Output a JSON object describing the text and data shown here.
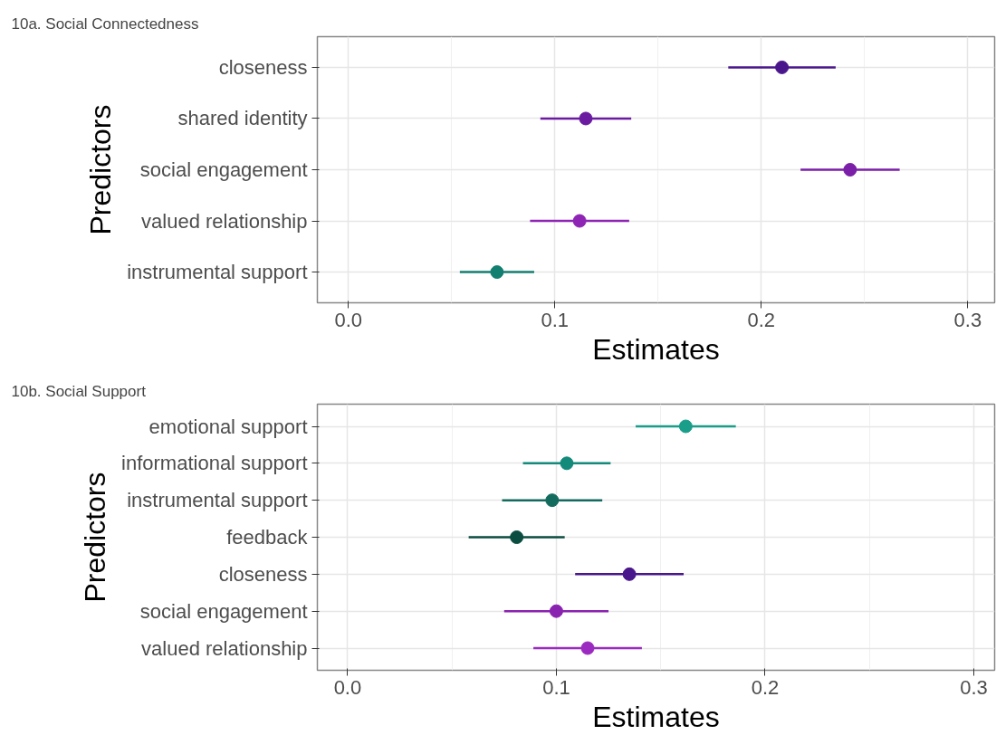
{
  "chart_data": [
    {
      "type": "scatter",
      "orientation": "horizontal",
      "title": "10a. Social Connectedness",
      "xlabel": "Estimates",
      "ylabel": "Predictors",
      "categories": [
        "closeness",
        "shared identity",
        "social engagement",
        "valued relationship",
        "instrumental support"
      ],
      "values": [
        0.21,
        0.115,
        0.243,
        0.112,
        0.072
      ],
      "errors": [
        [
          0.184,
          0.236
        ],
        [
          0.093,
          0.137
        ],
        [
          0.219,
          0.267
        ],
        [
          0.088,
          0.136
        ],
        [
          0.054,
          0.09
        ]
      ],
      "colors": [
        "#4a168c",
        "#6a1ba0",
        "#7b1fa8",
        "#8e25b5",
        "#137f70"
      ],
      "xlim": [
        -0.015,
        0.313
      ],
      "xticks": [
        {
          "value": 0,
          "label": "0.0"
        },
        0.1,
        0.2,
        0.3
      ],
      "grid": true,
      "marker": "circle"
    },
    {
      "type": "scatter",
      "orientation": "horizontal",
      "title": "10b. Social Support",
      "xlabel": "Estimates",
      "ylabel": "Predictors",
      "categories": [
        "emotional support",
        "informational support",
        "instrumental support",
        "feedback",
        "closeness",
        "social engagement",
        "valued relationship"
      ],
      "values": [
        0.162,
        0.105,
        0.098,
        0.081,
        0.135,
        0.1,
        0.115
      ],
      "errors": [
        [
          0.138,
          0.186
        ],
        [
          0.084,
          0.126
        ],
        [
          0.074,
          0.122
        ],
        [
          0.058,
          0.104
        ],
        [
          0.109,
          0.161
        ],
        [
          0.075,
          0.125
        ],
        [
          0.089,
          0.141
        ]
      ],
      "colors": [
        "#1a9e8a",
        "#138a7a",
        "#136b5e",
        "#0b4d40",
        "#4a168c",
        "#8a22b0",
        "#9b2bc0"
      ],
      "xlim": [
        -0.0145,
        0.31
      ],
      "xticks": [
        {
          "value": 0,
          "label": "0.0"
        },
        0.1,
        0.2,
        0.3
      ],
      "grid": true,
      "marker": "circle"
    }
  ]
}
